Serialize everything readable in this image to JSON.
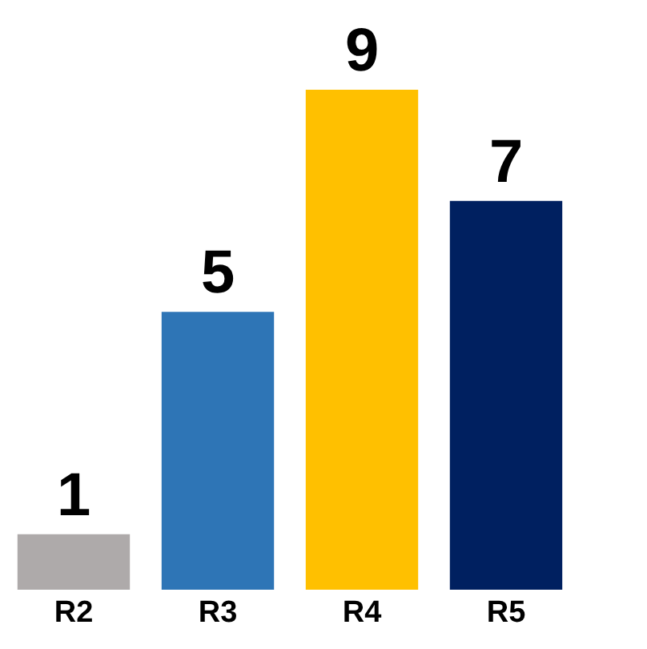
{
  "chart_data": {
    "type": "bar",
    "categories": [
      "R2",
      "R3",
      "R4",
      "R5"
    ],
    "values": [
      1,
      5,
      9,
      7
    ],
    "colors": [
      "#aeaaaa",
      "#2e75b6",
      "#ffc000",
      "#002060"
    ],
    "data_labels": true
  }
}
